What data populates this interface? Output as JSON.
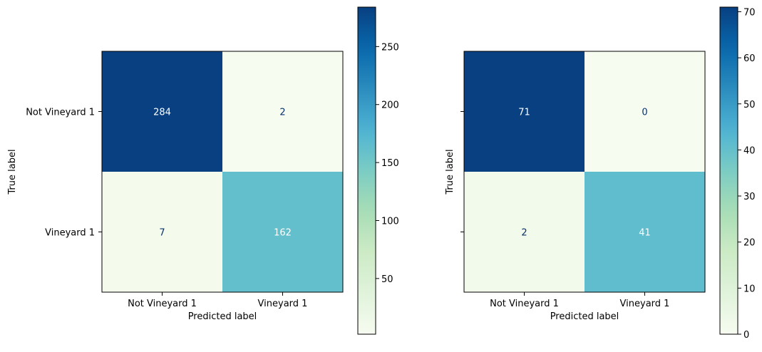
{
  "chart_data": [
    {
      "type": "heatmap",
      "title": "",
      "xlabel": "Predicted label",
      "ylabel": "True label",
      "x_categories": [
        "Not Vineyard 1",
        "Vineyard 1"
      ],
      "y_categories": [
        "Not Vineyard 1",
        "Vineyard 1"
      ],
      "show_y_tick_labels": true,
      "values": [
        [
          284,
          2
        ],
        [
          7,
          162
        ]
      ],
      "colormap": "GnBu",
      "colorbar": {
        "min": 2,
        "max": 284,
        "ticks": [
          50,
          100,
          150,
          200,
          250
        ]
      }
    },
    {
      "type": "heatmap",
      "title": "",
      "xlabel": "Predicted label",
      "ylabel": "True label",
      "x_categories": [
        "Not Vineyard 1",
        "Vineyard 1"
      ],
      "y_categories": [
        "Not Vineyard 1",
        "Vineyard 1"
      ],
      "show_y_tick_labels": false,
      "values": [
        [
          71,
          0
        ],
        [
          2,
          41
        ]
      ],
      "colormap": "GnBu",
      "colorbar": {
        "min": 0,
        "max": 71,
        "ticks": [
          0,
          10,
          20,
          30,
          40,
          50,
          60,
          70
        ]
      }
    }
  ],
  "colors": {
    "text_light": "#ffffff",
    "text_dark": "#08306b",
    "frame": "#000000"
  }
}
